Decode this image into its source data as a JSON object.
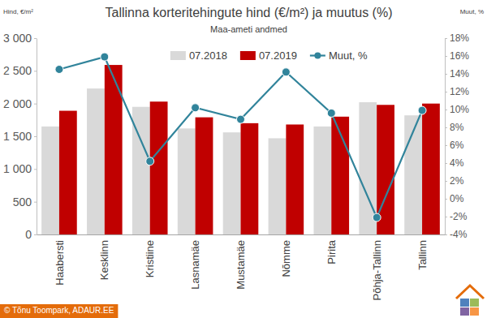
{
  "chart_data": {
    "type": "bar",
    "title": "Tallinna korteritehingute hind (€/m²) ja muutus (%)",
    "subtitle": "Maa-ameti andmed",
    "y_label": "Hind, €/m²",
    "y2_label": "Muut, %",
    "source": "© Tõnu Toompark, ADAUR.EE",
    "categories": [
      "Haabersti",
      "Kesklinn",
      "Kristiine",
      "Lasnamäe",
      "Mustamäe",
      "Nõmme",
      "Pirita",
      "Põhja-Tallinn",
      "Tallinn"
    ],
    "series": [
      {
        "name": "07.2018",
        "type": "bar",
        "color": "#d9d9d9",
        "values": [
          1650,
          2230,
          1950,
          1620,
          1560,
          1470,
          1650,
          2020,
          1820
        ]
      },
      {
        "name": "07.2019",
        "type": "bar",
        "color": "#c00000",
        "values": [
          1890,
          2590,
          2030,
          1790,
          1700,
          1680,
          1800,
          1980,
          2000
        ]
      },
      {
        "name": "Muut, %",
        "type": "line",
        "axis": "y2",
        "color": "#31849b",
        "marker": "circle",
        "values": [
          14.5,
          15.9,
          4.2,
          10.2,
          8.9,
          14.2,
          9.6,
          -2.1,
          9.9
        ]
      }
    ],
    "ylim": [
      0,
      3000
    ],
    "yticks": [
      0,
      500,
      {
        "value": 1000,
        "label": "1 000"
      },
      {
        "value": 1500,
        "label": "1 500"
      },
      {
        "value": 2000,
        "label": "2 000"
      },
      {
        "value": 2500,
        "label": "2 500"
      },
      {
        "value": 3000,
        "label": "3 000"
      }
    ],
    "y2lim": [
      -4,
      18
    ],
    "y2ticks": [
      {
        "value": -4,
        "label": "-4%"
      },
      {
        "value": -2,
        "label": "-2%"
      },
      {
        "value": 0,
        "label": "0%"
      },
      {
        "value": 2,
        "label": "2%"
      },
      {
        "value": 4,
        "label": "4%"
      },
      {
        "value": 6,
        "label": "6%"
      },
      {
        "value": 8,
        "label": "8%"
      },
      {
        "value": 10,
        "label": "10%"
      },
      {
        "value": 12,
        "label": "12%"
      },
      {
        "value": 14,
        "label": "14%"
      },
      {
        "value": 16,
        "label": "16%"
      },
      {
        "value": 18,
        "label": "18%"
      }
    ],
    "grid": false,
    "legend": "top-right"
  }
}
